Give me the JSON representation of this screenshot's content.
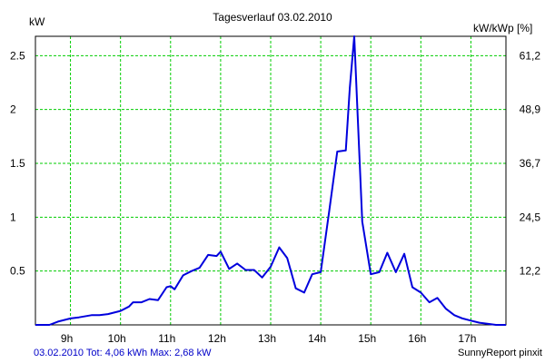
{
  "chart_data": {
    "type": "line",
    "title": "Tagesverlauf 03.02.2010",
    "ylabel_left": "kW",
    "ylabel_right": "kW/kWp [%]",
    "xlim": [
      8.3,
      17.7
    ],
    "ylim": [
      0,
      2.68
    ],
    "grid": true,
    "line_color": "#0000dd",
    "grid_color": "#00cc00",
    "x_ticks": [
      9,
      10,
      11,
      12,
      13,
      14,
      15,
      16,
      17
    ],
    "x_tick_labels": [
      "9h",
      "10h",
      "11h",
      "12h",
      "13h",
      "14h",
      "15h",
      "16h",
      "17h"
    ],
    "y_ticks": [
      0.5,
      1,
      1.5,
      2,
      2.5
    ],
    "y_tick_labels": [
      "0.5",
      "1",
      "1.5",
      "2",
      "2.5"
    ],
    "y2_ticks": [
      0.5,
      1,
      1.5,
      2,
      2.5
    ],
    "y2_tick_labels": [
      "12,2",
      "24,5",
      "36,7",
      "48,9",
      "61,2"
    ],
    "series": [
      {
        "x": [
          8.3,
          8.58,
          8.75,
          9.0,
          9.17,
          9.42,
          9.58,
          9.75,
          10.0,
          10.17,
          10.25,
          10.42,
          10.58,
          10.75,
          10.92,
          11.0,
          11.08,
          11.25,
          11.42,
          11.58,
          11.75,
          11.92,
          12.0,
          12.17,
          12.33,
          12.5,
          12.67,
          12.83,
          13.0,
          13.17,
          13.33,
          13.5,
          13.67,
          13.83,
          14.0,
          14.17,
          14.33,
          14.5,
          14.58,
          14.67,
          14.83,
          15.0,
          15.17,
          15.33,
          15.5,
          15.67,
          15.83,
          16.0,
          16.17,
          16.33,
          16.5,
          16.67,
          16.83,
          17.0,
          17.17,
          17.33,
          17.5,
          17.7
        ],
        "y": [
          0.0,
          0.0,
          0.03,
          0.06,
          0.07,
          0.09,
          0.09,
          0.1,
          0.13,
          0.17,
          0.21,
          0.21,
          0.24,
          0.23,
          0.35,
          0.36,
          0.33,
          0.46,
          0.5,
          0.53,
          0.65,
          0.64,
          0.68,
          0.52,
          0.57,
          0.51,
          0.51,
          0.44,
          0.54,
          0.72,
          0.62,
          0.34,
          0.3,
          0.47,
          0.49,
          1.06,
          1.61,
          1.62,
          2.2,
          2.68,
          0.96,
          0.47,
          0.49,
          0.67,
          0.49,
          0.66,
          0.35,
          0.3,
          0.21,
          0.25,
          0.15,
          0.09,
          0.06,
          0.04,
          0.02,
          0.01,
          0.0,
          0.0
        ]
      }
    ]
  },
  "footer": {
    "summary": "03.02.2010 Tot: 4,06 kWh Max: 2,68 kW",
    "credit": "SunnyReport pinxit"
  }
}
